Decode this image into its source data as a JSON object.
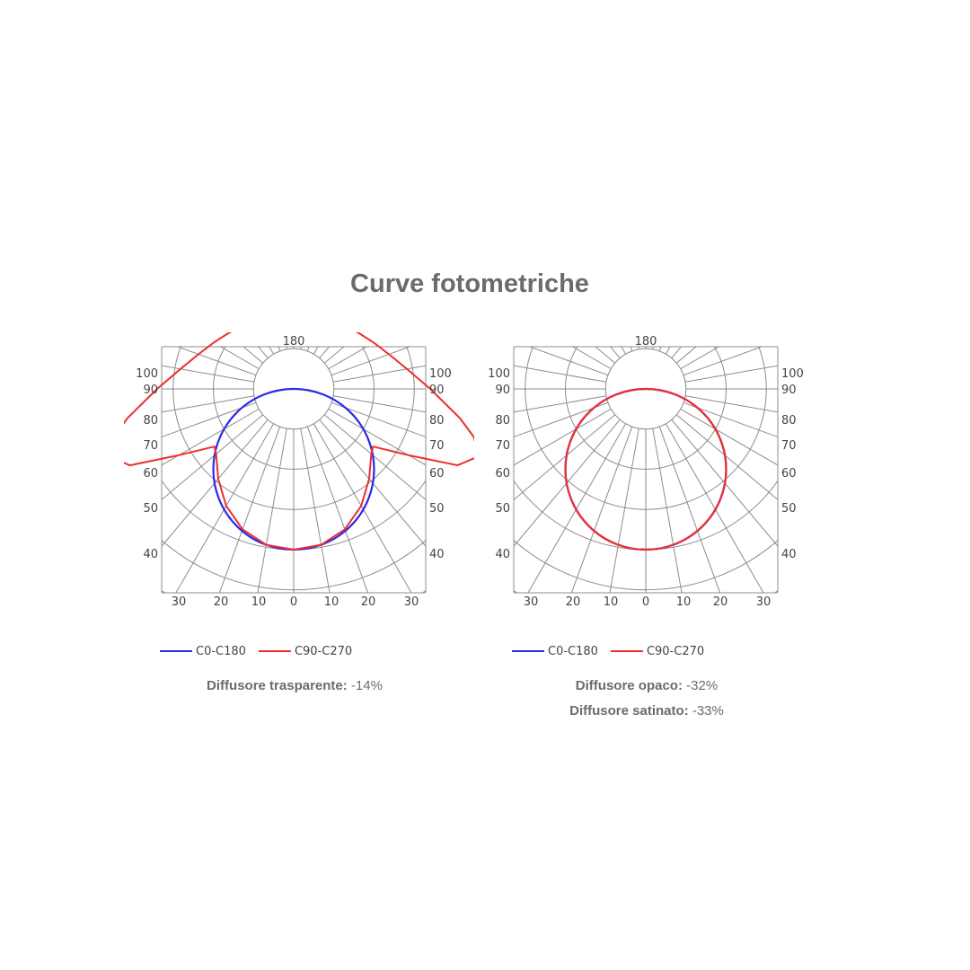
{
  "title": "Curve fotometriche",
  "legend": {
    "series_1": "C0-C180",
    "series_2": "C90-C270"
  },
  "colors": {
    "series_1": "#2a2ae8",
    "series_2": "#ee2e2e",
    "grid": "#8c8c8c",
    "text": "#6b6b6b"
  },
  "notes": {
    "left": [
      {
        "label": "Diffusore trasparente:",
        "value": "-14%"
      }
    ],
    "right": [
      {
        "label": "Diffusore opaco:",
        "value": "-32%"
      },
      {
        "label": "Diffusore satinato:",
        "value": "-33%"
      }
    ]
  },
  "chart_data": [
    {
      "type": "polar",
      "title": "",
      "angle_labels_top": [
        "180"
      ],
      "angle_labels_side": [
        "100",
        "90",
        "80",
        "70",
        "60",
        "50",
        "40"
      ],
      "radial_labels_bottom": [
        "30",
        "20",
        "10",
        "0",
        "10",
        "20",
        "30"
      ],
      "radial_ticks": [
        10,
        20,
        30
      ],
      "series": [
        {
          "name": "C0-C180",
          "shape": "circle",
          "diameter": 20
        },
        {
          "name": "C90-C270",
          "shape": "batwing",
          "points": [
            [
              0,
              20
            ],
            [
              10,
              19.7
            ],
            [
              20,
              18.6
            ],
            [
              30,
              16.8
            ],
            [
              40,
              14.6
            ],
            [
              50,
              12.6
            ],
            [
              54,
              12.2
            ],
            [
              60,
              16.5
            ],
            [
              65,
              22.5
            ],
            [
              70,
              24.5
            ],
            [
              75,
              23.2
            ],
            [
              80,
              21
            ],
            [
              90,
              17
            ],
            [
              100,
              14.3
            ],
            [
              110,
              12.6
            ],
            [
              120,
              11.5
            ],
            [
              130,
              10.7
            ],
            [
              140,
              10.2
            ],
            [
              150,
              9.9
            ],
            [
              160,
              9.8
            ],
            [
              170,
              9.7
            ],
            [
              180,
              9.7
            ]
          ]
        }
      ]
    },
    {
      "type": "polar",
      "title": "",
      "angle_labels_top": [
        "180"
      ],
      "angle_labels_side": [
        "100",
        "90",
        "80",
        "70",
        "60",
        "50",
        "40"
      ],
      "radial_labels_bottom": [
        "30",
        "20",
        "10",
        "0",
        "10",
        "20",
        "30"
      ],
      "radial_ticks": [
        10,
        20,
        30
      ],
      "series": [
        {
          "name": "C0-C180",
          "shape": "circle",
          "diameter": 20
        },
        {
          "name": "C90-C270",
          "shape": "circle",
          "diameter": 20
        }
      ]
    }
  ]
}
